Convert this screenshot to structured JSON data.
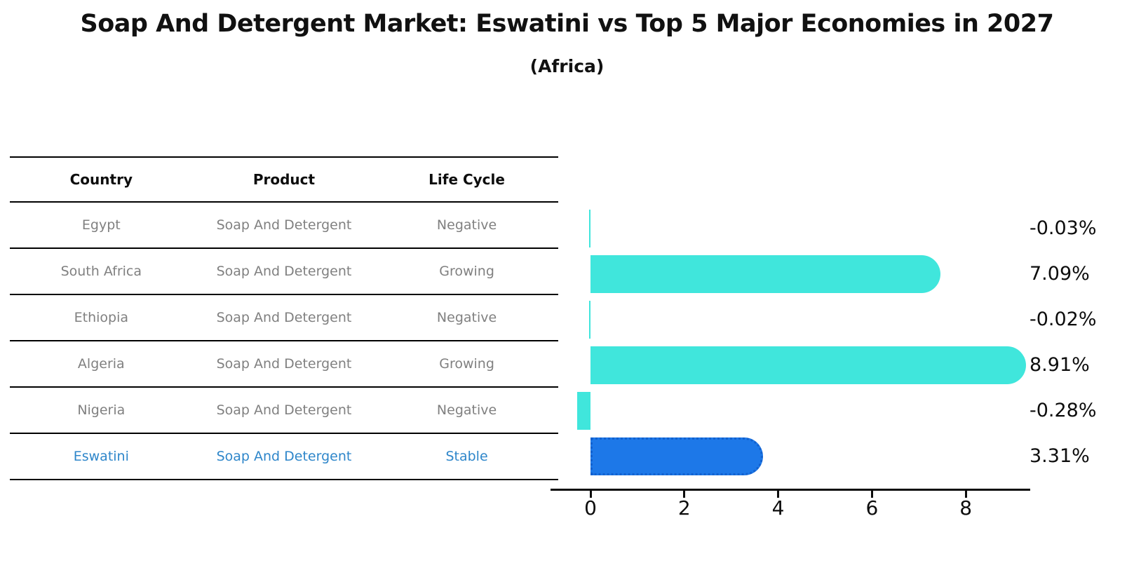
{
  "header": {
    "title": "Soap And Detergent Market: Eswatini vs Top 5 Major Economies in 2027",
    "subtitle": "(Africa)"
  },
  "table": {
    "headers": [
      "Country",
      "Product",
      "Life Cycle"
    ],
    "rows": [
      {
        "country": "Egypt",
        "product": "Soap And Detergent",
        "life_cycle": "Negative",
        "highlight": false
      },
      {
        "country": "South Africa",
        "product": "Soap And Detergent",
        "life_cycle": "Growing",
        "highlight": false
      },
      {
        "country": "Ethiopia",
        "product": "Soap And Detergent",
        "life_cycle": "Negative",
        "highlight": false
      },
      {
        "country": "Algeria",
        "product": "Soap And Detergent",
        "life_cycle": "Growing",
        "highlight": false
      },
      {
        "country": "Nigeria",
        "product": "Soap And Detergent",
        "life_cycle": "Negative",
        "highlight": false
      },
      {
        "country": "Eswatini",
        "product": "Soap And Detergent",
        "life_cycle": "Stable",
        "highlight": true
      }
    ]
  },
  "chart_data": {
    "type": "bar",
    "orientation": "horizontal",
    "title": "Soap And Detergent Market: Eswatini vs Top 5 Major Economies in 2027 (Africa)",
    "categories": [
      "Egypt",
      "South Africa",
      "Ethiopia",
      "Algeria",
      "Nigeria",
      "Eswatini"
    ],
    "values": [
      -0.03,
      7.09,
      -0.02,
      8.91,
      -0.28,
      3.31
    ],
    "value_labels": [
      "-0.03%",
      "7.09%",
      "-0.02%",
      "8.91%",
      "-0.28%",
      "3.31%"
    ],
    "unit": "percent",
    "xticks": [
      0,
      2,
      4,
      6,
      8
    ],
    "xlim": [
      -0.85,
      9.4
    ],
    "grid": false,
    "legend": "none",
    "highlight_index": 5,
    "colors": {
      "bar_default": "#40e6dc",
      "bar_highlight": "#1d78e8",
      "highlight_text": "#2e86ca"
    }
  }
}
